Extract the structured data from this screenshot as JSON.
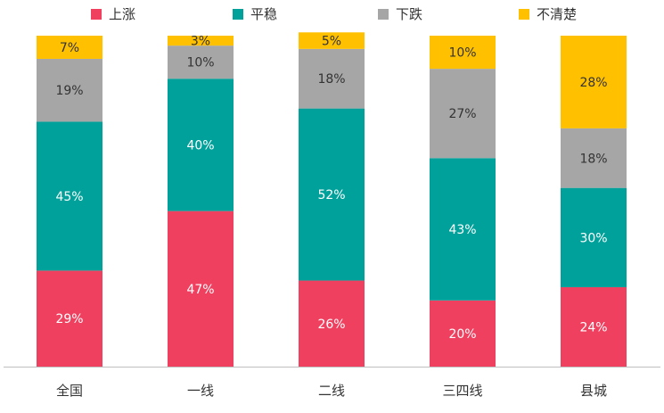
{
  "chart_data": {
    "type": "bar",
    "stacked": true,
    "categories": [
      "全国",
      "一线",
      "二线",
      "三四线",
      "县城"
    ],
    "series": [
      {
        "name": "上涨",
        "color": "#F0405F",
        "values": [
          29,
          47,
          26,
          20,
          24
        ]
      },
      {
        "name": "平稳",
        "color": "#00A19A",
        "values": [
          45,
          40,
          52,
          43,
          30
        ]
      },
      {
        "name": "下跌",
        "color": "#A6A6A6",
        "values": [
          19,
          10,
          18,
          27,
          18
        ]
      },
      {
        "name": "不清楚",
        "color": "#FFC000",
        "values": [
          7,
          3,
          5,
          10,
          28
        ]
      }
    ],
    "value_suffix": "%",
    "ylim": [
      0,
      100
    ],
    "legend_position": "top",
    "grid": false
  }
}
